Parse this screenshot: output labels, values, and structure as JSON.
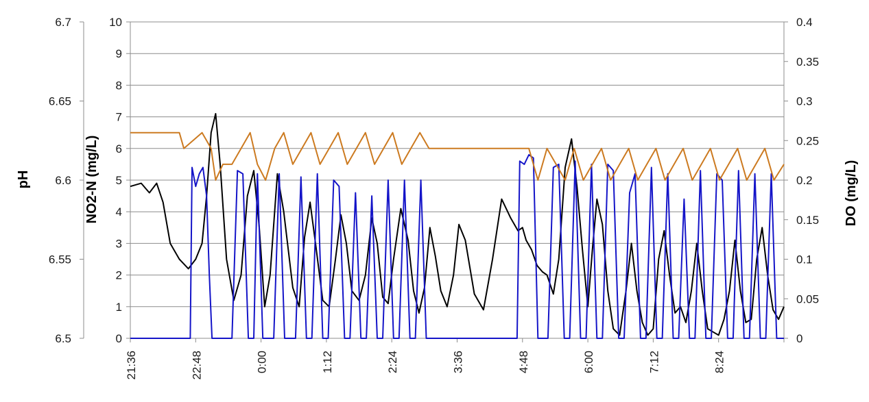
{
  "chart_data": {
    "type": "line",
    "x_ticks": [
      "21:36",
      "22:48",
      "0:00",
      "1:12",
      "2:24",
      "3:36",
      "4:48",
      "6:00",
      "7:12",
      "8:24"
    ],
    "xlim": [
      "21:36",
      "9:36"
    ],
    "axes": {
      "left_outer": {
        "label": "pH",
        "ylim": [
          6.5,
          6.7
        ],
        "ticks": [
          "6.5",
          "6.55",
          "6.6",
          "6.65",
          "6.7"
        ]
      },
      "left_inner": {
        "label": "NO2-N (mg/L)",
        "ylim": [
          0,
          10
        ],
        "ticks": [
          "0",
          "1",
          "2",
          "3",
          "4",
          "5",
          "6",
          "7",
          "8",
          "9",
          "10"
        ]
      },
      "right": {
        "label": "DO (mg/L)",
        "ylim": [
          0,
          0.4
        ],
        "ticks": [
          "0",
          "0.05",
          "0.1",
          "0.15",
          "0.2",
          "0.25",
          "0.3",
          "0.35",
          "0.4"
        ]
      }
    },
    "grid": "horizontal",
    "series": [
      {
        "axis": "left_inner",
        "color": "#000000",
        "x": [
          "21:36",
          "21:48",
          "21:57",
          "22:05",
          "22:12",
          "22:20",
          "22:30",
          "22:40",
          "22:48",
          "22:55",
          "23:00",
          "23:05",
          "23:10",
          "23:15",
          "23:22",
          "23:30",
          "23:38",
          "23:45",
          "23:52",
          "23:58",
          "0:04",
          "0:10",
          "0:18",
          "0:25",
          "0:35",
          "0:42",
          "0:48",
          "0:54",
          "1:00",
          "1:08",
          "1:15",
          "1:22",
          "1:28",
          "1:34",
          "1:40",
          "1:48",
          "1:55",
          "2:02",
          "2:08",
          "2:14",
          "2:20",
          "2:26",
          "2:34",
          "2:42",
          "2:48",
          "2:54",
          "3:00",
          "3:06",
          "3:12",
          "3:18",
          "3:25",
          "3:32",
          "3:38",
          "3:45",
          "3:55",
          "4:05",
          "4:15",
          "4:25",
          "4:35",
          "4:43",
          "4:48",
          "4:52",
          "4:58",
          "5:04",
          "5:10",
          "5:15",
          "5:22",
          "5:28",
          "5:35",
          "5:42",
          "5:48",
          "5:54",
          "6:00",
          "6:05",
          "6:10",
          "6:16",
          "6:22",
          "6:28",
          "6:35",
          "6:42",
          "6:48",
          "6:54",
          "7:00",
          "7:06",
          "7:12",
          "7:18",
          "7:24",
          "7:30",
          "7:36",
          "7:42",
          "7:48",
          "7:54",
          "8:00",
          "8:06",
          "8:12",
          "8:18",
          "8:24",
          "8:30",
          "8:36",
          "8:42",
          "8:48",
          "8:54",
          "9:00",
          "9:06",
          "9:12",
          "9:18",
          "9:24",
          "9:30",
          "9:36"
        ],
        "values": [
          4.8,
          4.9,
          4.6,
          4.9,
          4.3,
          3.0,
          2.5,
          2.2,
          2.5,
          3.0,
          4.5,
          6.5,
          7.1,
          5.5,
          2.5,
          1.2,
          2.0,
          4.5,
          5.3,
          3.5,
          1.0,
          2.0,
          5.2,
          4.0,
          1.6,
          1.0,
          3.2,
          4.3,
          3.0,
          1.2,
          1.0,
          2.5,
          3.9,
          3.0,
          1.5,
          1.2,
          2.0,
          3.8,
          3.0,
          1.3,
          1.1,
          2.5,
          4.1,
          3.1,
          1.5,
          0.8,
          1.6,
          3.5,
          2.6,
          1.5,
          1.0,
          2.0,
          3.6,
          3.1,
          1.4,
          0.9,
          2.5,
          4.4,
          3.8,
          3.4,
          3.5,
          3.1,
          2.8,
          2.3,
          2.1,
          2.0,
          1.4,
          2.5,
          5.4,
          6.3,
          4.8,
          2.8,
          1.0,
          2.8,
          4.4,
          3.6,
          1.5,
          0.3,
          0.1,
          1.5,
          3.0,
          1.5,
          0.5,
          0.1,
          0.3,
          2.5,
          3.4,
          2.0,
          0.8,
          1.0,
          0.5,
          1.5,
          3.0,
          1.5,
          0.3,
          0.2,
          0.1,
          0.6,
          1.5,
          3.1,
          1.5,
          0.5,
          0.6,
          2.5,
          3.5,
          2.0,
          0.9,
          0.6,
          1.0
        ]
      },
      {
        "axis": "left_inner",
        "color": "#1414c8",
        "x": [
          "21:36",
          "22:42",
          "22:44",
          "22:48",
          "22:52",
          "22:56",
          "23:00",
          "23:03",
          "23:06",
          "23:12",
          "23:20",
          "23:28",
          "23:34",
          "23:40",
          "23:46",
          "23:52",
          "23:56",
          "0:02",
          "0:08",
          "0:14",
          "0:20",
          "0:26",
          "0:32",
          "0:38",
          "0:44",
          "0:50",
          "0:56",
          "1:02",
          "1:08",
          "1:14",
          "1:20",
          "1:26",
          "1:32",
          "1:38",
          "1:44",
          "1:50",
          "1:56",
          "2:02",
          "2:08",
          "2:14",
          "2:20",
          "2:26",
          "2:32",
          "2:38",
          "2:44",
          "2:50",
          "2:56",
          "3:02",
          "3:08",
          "3:14",
          "3:20",
          "3:26",
          "3:32",
          "4:42",
          "4:45",
          "4:50",
          "4:55",
          "5:00",
          "5:05",
          "5:10",
          "5:16",
          "5:22",
          "5:28",
          "5:34",
          "5:40",
          "5:46",
          "5:52",
          "5:58",
          "6:04",
          "6:10",
          "6:16",
          "6:22",
          "6:28",
          "6:34",
          "6:40",
          "6:46",
          "6:52",
          "6:58",
          "7:04",
          "7:10",
          "7:16",
          "7:22",
          "7:28",
          "7:34",
          "7:40",
          "7:46",
          "7:52",
          "7:58",
          "8:04",
          "8:10",
          "8:16",
          "8:22",
          "8:28",
          "8:34",
          "8:40",
          "8:46",
          "8:52",
          "8:58",
          "9:04",
          "9:10",
          "9:16",
          "9:22",
          "9:28",
          "9:36"
        ],
        "values": [
          0,
          0,
          5.4,
          4.8,
          5.2,
          5.4,
          4.5,
          2.0,
          0,
          0,
          0,
          0,
          5.3,
          5.2,
          0,
          0,
          5.2,
          0,
          0,
          0,
          5.2,
          0,
          0,
          0,
          5.1,
          0,
          0,
          5.2,
          0,
          0,
          5.0,
          4.8,
          0,
          0,
          4.6,
          0,
          0,
          4.5,
          0,
          0,
          5.0,
          0,
          0,
          5.0,
          0,
          0,
          5.0,
          0,
          0,
          0,
          0,
          0,
          0,
          0,
          5.6,
          5.5,
          5.8,
          5.7,
          0,
          0,
          0,
          5.4,
          5.5,
          0,
          0,
          5.6,
          0,
          0,
          5.5,
          0,
          0,
          5.5,
          5.3,
          0,
          0,
          4.6,
          5.2,
          0,
          0,
          5.4,
          0,
          0,
          5.2,
          0,
          0,
          4.4,
          0,
          0,
          5.3,
          0,
          0,
          5.2,
          5.0,
          0,
          0,
          5.3,
          0,
          0,
          5.2,
          0,
          0,
          5.2,
          0,
          0
        ]
      },
      {
        "axis": "right",
        "color": "#cc7a20",
        "x": [
          "21:36",
          "22:30",
          "22:35",
          "22:55",
          "23:05",
          "23:10",
          "23:18",
          "23:28",
          "23:38",
          "23:48",
          "23:56",
          "0:05",
          "0:15",
          "0:25",
          "0:35",
          "0:45",
          "0:55",
          "1:05",
          "1:15",
          "1:25",
          "1:35",
          "1:45",
          "1:55",
          "2:05",
          "2:15",
          "2:25",
          "2:35",
          "2:45",
          "2:55",
          "3:05",
          "3:15",
          "3:25",
          "4:35",
          "4:48",
          "4:55",
          "5:05",
          "5:15",
          "5:25",
          "5:35",
          "5:45",
          "5:55",
          "6:05",
          "6:15",
          "6:25",
          "6:35",
          "6:45",
          "6:55",
          "7:05",
          "7:15",
          "7:25",
          "7:35",
          "7:45",
          "7:55",
          "8:05",
          "8:15",
          "8:25",
          "8:35",
          "8:45",
          "8:55",
          "9:05",
          "9:15",
          "9:25",
          "9:36"
        ],
        "values": [
          0.26,
          0.26,
          0.24,
          0.26,
          0.24,
          0.2,
          0.22,
          0.22,
          0.24,
          0.26,
          0.22,
          0.2,
          0.24,
          0.26,
          0.22,
          0.24,
          0.26,
          0.22,
          0.24,
          0.26,
          0.22,
          0.24,
          0.26,
          0.22,
          0.24,
          0.26,
          0.22,
          0.24,
          0.26,
          0.24,
          0.24,
          0.24,
          0.24,
          0.24,
          0.24,
          0.2,
          0.24,
          0.22,
          0.2,
          0.24,
          0.2,
          0.22,
          0.24,
          0.2,
          0.22,
          0.24,
          0.2,
          0.22,
          0.24,
          0.2,
          0.22,
          0.24,
          0.2,
          0.22,
          0.24,
          0.2,
          0.22,
          0.24,
          0.2,
          0.22,
          0.24,
          0.2,
          0.22
        ]
      }
    ]
  }
}
